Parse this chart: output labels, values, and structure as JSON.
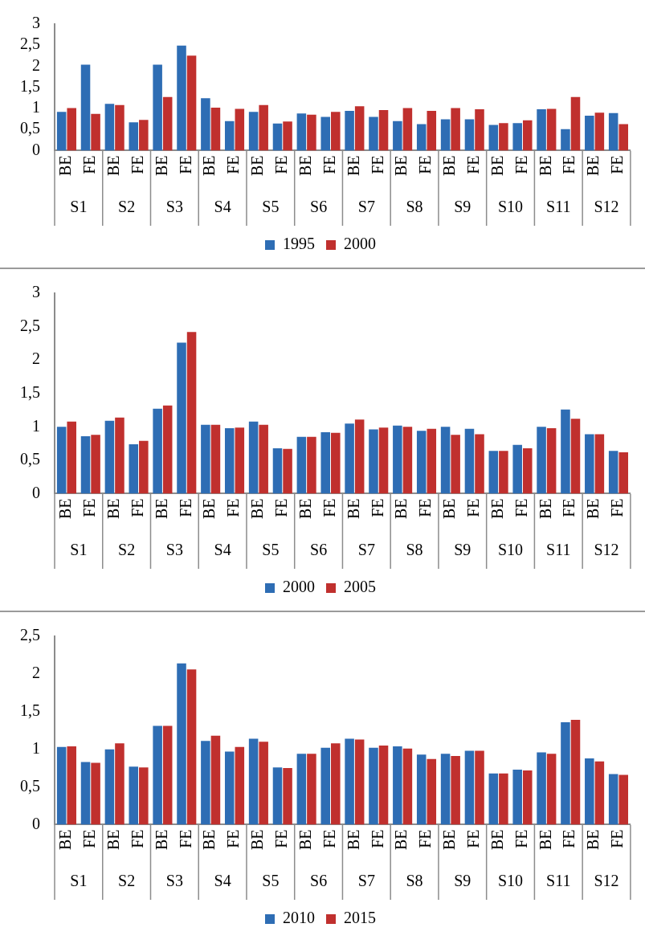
{
  "chart_data": [
    {
      "type": "bar",
      "categories": [
        "BE",
        "FE",
        "BE",
        "FE",
        "BE",
        "FE",
        "BE",
        "FE",
        "BE",
        "FE",
        "BE",
        "FE",
        "BE",
        "FE",
        "BE",
        "FE",
        "BE",
        "FE",
        "BE",
        "FE",
        "BE",
        "FE",
        "BE",
        "FE"
      ],
      "series": [
        {
          "name": "1995",
          "color": "#2e6db4",
          "values": [
            0.92,
            2.04,
            1.11,
            0.67,
            2.04,
            2.49,
            1.24,
            0.7,
            0.92,
            0.64,
            0.88,
            0.8,
            0.94,
            0.8,
            0.7,
            0.63,
            0.74,
            0.74,
            0.61,
            0.65,
            0.98,
            0.51,
            0.83,
            0.89
          ]
        },
        {
          "name": "2000",
          "color": "#c0302e",
          "values": [
            1.01,
            0.87,
            1.08,
            0.73,
            1.27,
            2.25,
            1.02,
            0.99,
            1.08,
            0.69,
            0.85,
            0.92,
            1.05,
            0.96,
            1.01,
            0.94,
            1.01,
            0.98,
            0.65,
            0.72,
            0.99,
            1.27,
            0.9,
            0.63
          ]
        }
      ],
      "ylim": [
        0,
        3
      ],
      "yticks": [
        0,
        {
          "value": 0.5,
          "label": "0,5"
        },
        1,
        {
          "value": 1.5,
          "label": "1,5"
        },
        2,
        {
          "value": 2.5,
          "label": "2,5"
        },
        3
      ],
      "legend": "bottom",
      "annotations": [
        "S1",
        "S2",
        "S3",
        "S4",
        "S5",
        "S6",
        "S7",
        "S8",
        "S9",
        "S10",
        "S11",
        "S12"
      ]
    },
    {
      "type": "bar",
      "categories": [
        "BE",
        "FE",
        "BE",
        "FE",
        "BE",
        "FE",
        "BE",
        "FE",
        "BE",
        "FE",
        "BE",
        "FE",
        "BE",
        "FE",
        "BE",
        "FE",
        "BE",
        "FE",
        "BE",
        "FE",
        "BE",
        "FE",
        "BE",
        "FE"
      ],
      "series": [
        {
          "name": "2000",
          "color": "#2e6db4",
          "values": [
            1.0,
            0.86,
            1.09,
            0.74,
            1.27,
            2.26,
            1.03,
            0.98,
            1.08,
            0.68,
            0.85,
            0.92,
            1.05,
            0.96,
            1.02,
            0.94,
            1.0,
            0.97,
            0.64,
            0.73,
            1.0,
            1.26,
            0.89,
            0.64
          ]
        },
        {
          "name": "2005",
          "color": "#c0302e",
          "values": [
            1.08,
            0.88,
            1.14,
            0.79,
            1.32,
            2.42,
            1.03,
            0.99,
            1.03,
            0.67,
            0.85,
            0.91,
            1.11,
            0.99,
            1.0,
            0.97,
            0.88,
            0.89,
            0.64,
            0.68,
            0.98,
            1.12,
            0.89,
            0.62
          ]
        }
      ],
      "ylim": [
        0,
        3
      ],
      "yticks": [
        0,
        {
          "value": 0.5,
          "label": "0,5"
        },
        1,
        {
          "value": 1.5,
          "label": "1,5"
        },
        2,
        {
          "value": 2.5,
          "label": "2,5"
        },
        3
      ],
      "legend": "bottom",
      "annotations": [
        "S1",
        "S2",
        "S3",
        "S4",
        "S5",
        "S6",
        "S7",
        "S8",
        "S9",
        "S10",
        "S11",
        "S12"
      ]
    },
    {
      "type": "bar",
      "categories": [
        "BE",
        "FE",
        "BE",
        "FE",
        "BE",
        "FE",
        "BE",
        "FE",
        "BE",
        "FE",
        "BE",
        "FE",
        "BE",
        "FE",
        "BE",
        "FE",
        "BE",
        "FE",
        "BE",
        "FE",
        "BE",
        "FE",
        "BE",
        "FE"
      ],
      "series": [
        {
          "name": "2010",
          "color": "#2e6db4",
          "values": [
            1.03,
            0.83,
            1.0,
            0.77,
            1.31,
            2.14,
            1.11,
            0.97,
            1.14,
            0.76,
            0.94,
            1.02,
            1.14,
            1.02,
            1.04,
            0.93,
            0.94,
            0.98,
            0.68,
            0.73,
            0.96,
            1.36,
            0.88,
            0.67
          ]
        },
        {
          "name": "2015",
          "color": "#c0302e",
          "values": [
            1.04,
            0.82,
            1.08,
            0.76,
            1.31,
            2.06,
            1.18,
            1.03,
            1.1,
            0.75,
            0.94,
            1.08,
            1.13,
            1.05,
            1.01,
            0.87,
            0.91,
            0.98,
            0.68,
            0.72,
            0.94,
            1.39,
            0.84,
            0.66
          ]
        }
      ],
      "ylim": [
        0,
        2.5
      ],
      "yticks": [
        0,
        {
          "value": 0.5,
          "label": "0,5"
        },
        1,
        {
          "value": 1.5,
          "label": "1,5"
        },
        2,
        {
          "value": 2.5,
          "label": "2,5"
        }
      ],
      "legend": "bottom",
      "annotations": [
        "S1",
        "S2",
        "S3",
        "S4",
        "S5",
        "S6",
        "S7",
        "S8",
        "S9",
        "S10",
        "S11",
        "S12"
      ]
    }
  ]
}
